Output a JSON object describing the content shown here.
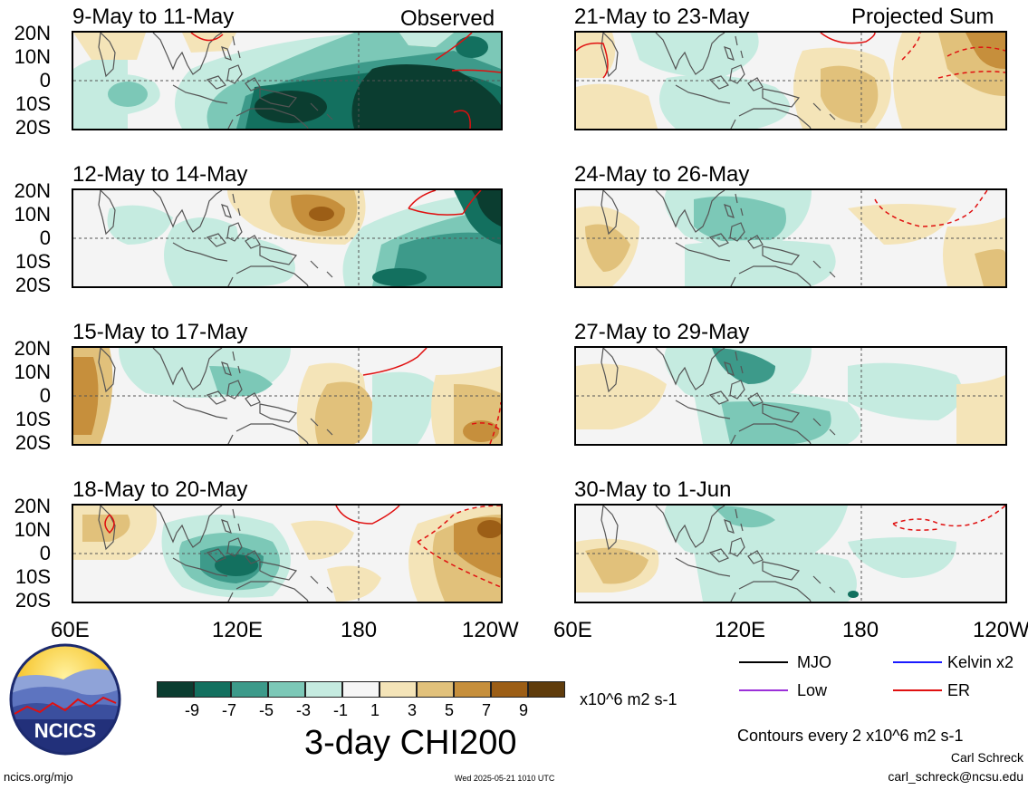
{
  "header": {
    "observed_label": "Observed",
    "projected_label": "Projected Sum"
  },
  "panels_left": [
    {
      "title": "9-May to 11-May"
    },
    {
      "title": "12-May to 14-May"
    },
    {
      "title": "15-May to 17-May"
    },
    {
      "title": "18-May to 20-May"
    }
  ],
  "panels_right": [
    {
      "title": "21-May to 23-May"
    },
    {
      "title": "24-May to 26-May"
    },
    {
      "title": "27-May to 29-May"
    },
    {
      "title": "30-May to 1-Jun"
    }
  ],
  "lat_labels": [
    "20N",
    "10N",
    "0",
    "10S",
    "20S"
  ],
  "lon_labels_left": [
    "60E",
    "120E",
    "180",
    "120W"
  ],
  "lon_labels_right": [
    "60E",
    "120E",
    "180",
    "120W"
  ],
  "colorbar": {
    "colors": [
      "#0b3d30",
      "#13705f",
      "#3d9a8a",
      "#7cc8b7",
      "#c5ebe0",
      "#f6f6f6",
      "#f4e4b8",
      "#e1c17b",
      "#c68f3c",
      "#9c5e16",
      "#5f3c0c"
    ],
    "ticks": [
      "-9",
      "-7",
      "-5",
      "-3",
      "-1",
      "1",
      "3",
      "5",
      "7",
      "9"
    ],
    "units": "x10^6 m2 s-1",
    "title": "3-day CHI200"
  },
  "legend": {
    "items": [
      {
        "label": "MJO",
        "color": "#000000"
      },
      {
        "label": "Kelvin x2",
        "color": "#1a1aff"
      },
      {
        "label": "Low",
        "color": "#9b30d9"
      },
      {
        "label": "ER",
        "color": "#e01010"
      }
    ],
    "contours_note": "Contours every 2 x10^6 m2 s-1",
    "author": "Carl Schreck",
    "email": "carl_schreck@ncsu.edu"
  },
  "footer": {
    "site": "ncics.org/mjo",
    "timestamp": "Wed 2025-05-21 1010 UTC",
    "logo_text": "NCICS"
  }
}
